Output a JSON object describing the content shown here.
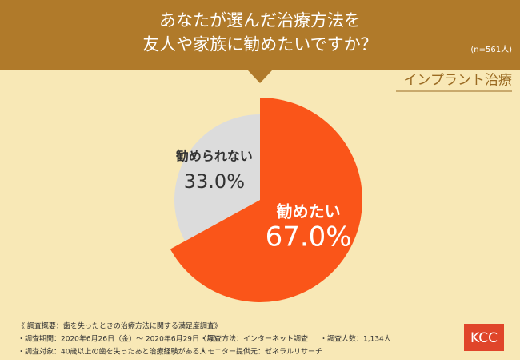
{
  "chart_data": {
    "type": "pie",
    "title": [
      "あなたが選んだ治療方法を",
      "友人や家族に勧めたいですか？"
    ],
    "subtitle": "(n=561人)",
    "annotation": "インプラント治療",
    "categories": [
      "勧めたい",
      "勧められない"
    ],
    "values": [
      67,
      33
    ],
    "value_labels": [
      "67.0%",
      "33.0%"
    ],
    "colors": [
      "#fa5519",
      "#dcdcdc"
    ]
  },
  "notes": {
    "heading": "《 調査概要：歯を失ったときの治療方法に関する満足度調査》",
    "items": [
      "・調査期間：2020年6月26日（金）～ 2020年6月29日（月）",
      "・調査方法：インターネット調査",
      "・調査人数：1,134人",
      "・調査対象：40歳以上の歯を失ったあと治療経験がある人",
      "・モニター提供元：ゼネラルリサーチ"
    ]
  },
  "logo": "KCC"
}
